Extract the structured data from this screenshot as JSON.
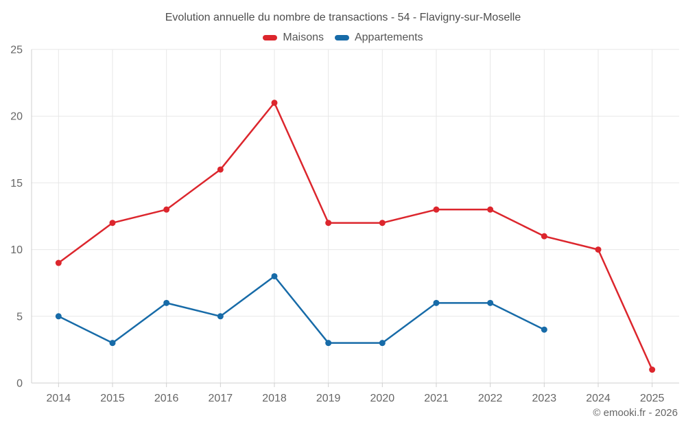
{
  "title": "Evolution annuelle du nombre de transactions - 54 - Flavigny-sur-Moselle",
  "legend": [
    {
      "label": "Maisons",
      "color": "#dc262d"
    },
    {
      "label": "Appartements",
      "color": "#176ba8"
    }
  ],
  "footer": "© emooki.fr - 2026",
  "colors": {
    "grid": "#e7e7e7",
    "axis": "#cfcfcf",
    "tick_label": "#666666"
  },
  "chart_data": {
    "type": "line",
    "title": "Evolution annuelle du nombre de transactions - 54 - Flavigny-sur-Moselle",
    "categories": [
      "2014",
      "2015",
      "2016",
      "2017",
      "2018",
      "2019",
      "2020",
      "2021",
      "2022",
      "2023",
      "2024",
      "2025"
    ],
    "series": [
      {
        "name": "Maisons",
        "color": "#dc262d",
        "values": [
          9,
          12,
          13,
          16,
          21,
          12,
          12,
          13,
          13,
          11,
          10,
          1
        ]
      },
      {
        "name": "Appartements",
        "color": "#176ba8",
        "values": [
          5,
          3,
          6,
          5,
          8,
          3,
          3,
          6,
          6,
          4,
          null,
          null
        ]
      }
    ],
    "xlabel": "",
    "ylabel": "",
    "ylim": [
      0,
      25
    ],
    "yticks": [
      0,
      5,
      10,
      15,
      20,
      25
    ],
    "grid": true,
    "legend_position": "top"
  }
}
